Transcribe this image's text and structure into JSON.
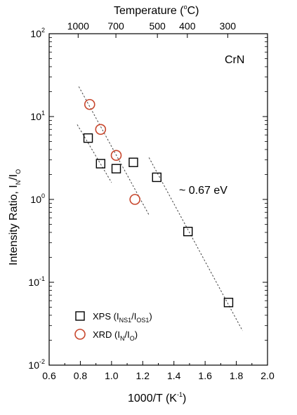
{
  "chart_data": {
    "type": "scatter",
    "xlabel": "1000/T (K",
    "xlabel_sup": "-1",
    "xlabel_tail": ")",
    "ylabel_main": "Intensity Ratio, I",
    "ylabel_sub1": "N",
    "ylabel_mid": "/I",
    "ylabel_sub2": "O",
    "top_axis_label": "Temperature (",
    "top_axis_sup": "o",
    "top_axis_tail": "C)",
    "xlim": [
      0.6,
      2.0
    ],
    "ylim": [
      0.01,
      100
    ],
    "yscale": "log",
    "x_ticks": [
      0.6,
      0.8,
      1.0,
      1.2,
      1.4,
      1.6,
      1.8,
      2.0
    ],
    "x_tick_labels": [
      "0.6",
      "0.8",
      "1.0",
      "1.2",
      "1.4",
      "1.6",
      "1.8",
      "2.0"
    ],
    "y_ticks": [
      0.01,
      0.1,
      1,
      10,
      100
    ],
    "y_tick_base": [
      "10",
      "10",
      "10",
      "10",
      "10"
    ],
    "y_tick_exp": [
      "-2",
      "-1",
      "0",
      "1",
      "2"
    ],
    "top_ticks": [
      {
        "label": "1000",
        "x": 0.786
      },
      {
        "label": "700",
        "x": 1.028
      },
      {
        "label": "500",
        "x": 1.294
      },
      {
        "label": "400",
        "x": 1.486
      },
      {
        "label": "300",
        "x": 1.745
      }
    ],
    "annotation_material": "CrN",
    "annotation_energy": "~ 0.67 eV",
    "series": [
      {
        "name_main": "XPS (I",
        "name_sub1": "NS1",
        "name_mid": "/I",
        "name_sub2": "OS1",
        "name_tail": ")",
        "marker": "square",
        "color": "#000000",
        "points": [
          {
            "x": 0.85,
            "y": 5.5
          },
          {
            "x": 0.93,
            "y": 2.7
          },
          {
            "x": 1.03,
            "y": 2.35
          },
          {
            "x": 1.14,
            "y": 2.8
          },
          {
            "x": 1.29,
            "y": 1.85
          },
          {
            "x": 1.49,
            "y": 0.41
          },
          {
            "x": 1.75,
            "y": 0.057
          }
        ]
      },
      {
        "name_main": "XRD (I",
        "name_sub1": "N",
        "name_mid": "/I",
        "name_sub2": "O",
        "name_tail": ")",
        "marker": "circle",
        "color": "#c8472d",
        "points": [
          {
            "x": 0.86,
            "y": 14.0
          },
          {
            "x": 0.93,
            "y": 7.0
          },
          {
            "x": 1.03,
            "y": 3.4
          },
          {
            "x": 1.15,
            "y": 1.0
          }
        ]
      }
    ],
    "fit_lines": [
      {
        "x": [
          0.78,
          1.0
        ],
        "y": [
          8.0,
          1.6
        ]
      },
      {
        "x": [
          0.79,
          1.24
        ],
        "y": [
          23.0,
          0.65
        ]
      },
      {
        "x": [
          1.24,
          1.84
        ],
        "y": [
          3.2,
          0.026
        ]
      }
    ]
  }
}
